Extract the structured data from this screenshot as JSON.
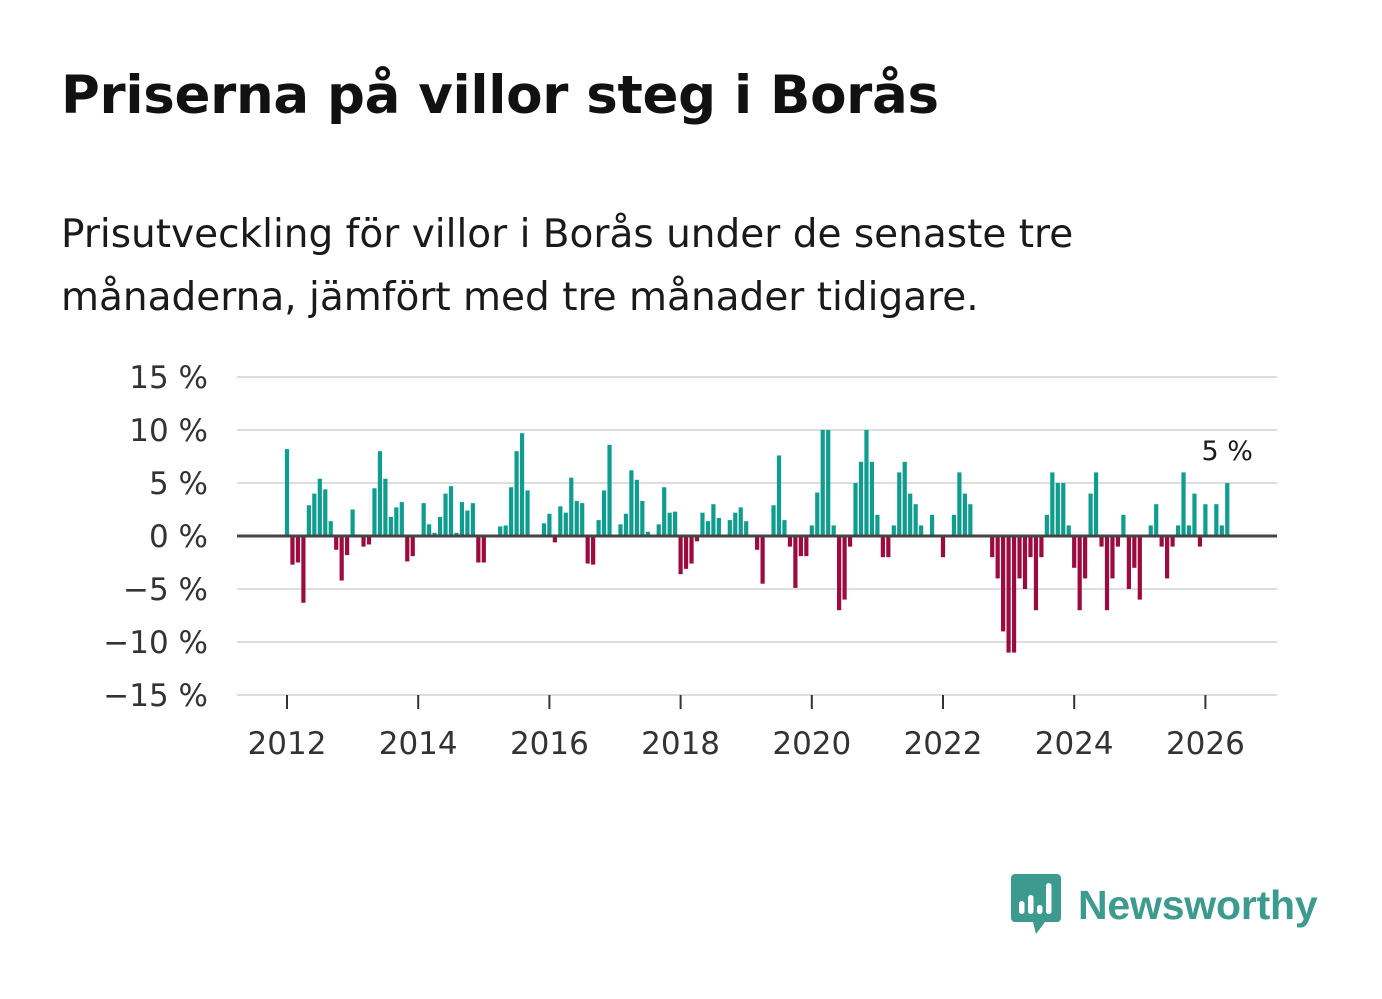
{
  "header": {
    "title": "Priserna på villor steg i Borås",
    "subtitle": "Prisutveckling för villor i Borås under de senaste tre månaderna, jämfört med tre månader tidigare."
  },
  "brand": {
    "name": "Newsworthy",
    "logo_icon": "bar-chart-speech-bubble-icon",
    "color": "#3d9a8f"
  },
  "colors": {
    "positive": "#0f9d8f",
    "negative": "#9c0a3e",
    "grid": "#dddddd",
    "zero_line": "#444444"
  },
  "chart_data": {
    "type": "bar",
    "title": "Priserna på villor steg i Borås",
    "subtitle": "Prisutveckling för villor i Borås under de senaste tre månaderna, jämfört med tre månader tidigare.",
    "xlabel": "",
    "ylabel": "",
    "x_start": "2012-01",
    "x_range": [
      2011.25,
      2026.9
    ],
    "ylim": [
      -15,
      15
    ],
    "y_ticks": [
      15,
      10,
      5,
      0,
      -5,
      -10,
      -15
    ],
    "y_tick_labels": [
      "15 %",
      "10 %",
      "5 %",
      "0 %",
      "−5 %",
      "−10 %",
      "−15 %"
    ],
    "x_ticks": [
      2012,
      2014,
      2016,
      2018,
      2020,
      2022,
      2024,
      2026
    ],
    "x_tick_labels": [
      "2012",
      "2014",
      "2016",
      "2018",
      "2020",
      "2022",
      "2024",
      "2026"
    ],
    "grid": true,
    "annotation": {
      "label": "5 %",
      "value": 5,
      "target": "last"
    },
    "series": [
      {
        "name": "Prisutveckling",
        "values": [
          8.2,
          -2.7,
          -2.5,
          -6.3,
          2.9,
          4.0,
          5.4,
          4.4,
          1.4,
          -1.3,
          -4.2,
          -1.8,
          2.5,
          0,
          -1.0,
          -0.8,
          4.5,
          8.0,
          5.4,
          1.8,
          2.7,
          3.2,
          -2.4,
          -1.9,
          0,
          3.1,
          1.1,
          0.3,
          1.8,
          4.0,
          4.7,
          0.3,
          3.2,
          2.4,
          3.1,
          -2.5,
          -2.5,
          0,
          0,
          0.9,
          1.0,
          4.6,
          8.0,
          9.7,
          4.3,
          0,
          0,
          1.2,
          2.1,
          -0.6,
          2.8,
          2.2,
          5.5,
          3.3,
          3.1,
          -2.6,
          -2.7,
          1.5,
          4.3,
          8.6,
          0,
          1.1,
          2.1,
          6.2,
          5.3,
          3.3,
          0.4,
          0,
          1.1,
          4.6,
          2.2,
          2.3,
          -3.6,
          -3.1,
          -2.6,
          -0.5,
          2.2,
          1.4,
          3.0,
          1.7,
          0,
          1.5,
          2.2,
          2.7,
          1.4,
          0,
          -1.3,
          -4.5,
          0,
          2.9,
          7.6,
          1.5,
          -1.0,
          -4.9,
          -1.9,
          -1.9,
          1.0,
          4.1,
          10.0,
          10.0,
          1.0,
          -7.0,
          -6.0,
          -1.0,
          5.0,
          7.0,
          10.0,
          7.0,
          2.0,
          -2.0,
          -2.0,
          1.0,
          6.0,
          7.0,
          4.0,
          3.0,
          1.0,
          0,
          2.0,
          0,
          -2.0,
          0,
          2.0,
          6.0,
          4.0,
          3.0,
          0,
          0,
          0,
          -2.0,
          -4.0,
          -9.0,
          -11.0,
          -11.0,
          -4.0,
          -5.0,
          -2.0,
          -7.0,
          -2.0,
          2.0,
          6.0,
          5.0,
          5.0,
          1.0,
          -3.0,
          -7.0,
          -4.0,
          4.0,
          6.0,
          -1.0,
          -7.0,
          -4.0,
          -1.0,
          2.0,
          -5.0,
          -3.0,
          -6.0,
          0,
          1.0,
          3.0,
          -1.0,
          -4.0,
          -1.0,
          1.0,
          6.0,
          1.0,
          4.0,
          -1.0,
          3.0,
          0,
          3.0,
          1.0,
          5.0
        ]
      }
    ]
  }
}
